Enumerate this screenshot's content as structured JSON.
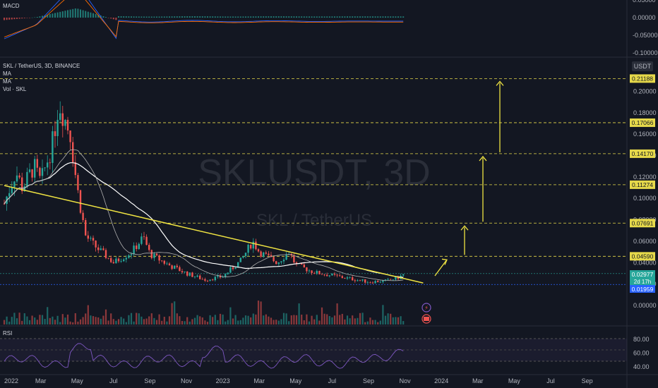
{
  "header": {
    "symbol_line": "SKL / TetherUS, 3D, BINANCE",
    "ma1": "MA",
    "ma2": "MA",
    "vol": "Vol · SKL",
    "currency": "USDT"
  },
  "watermark": {
    "ticker": "SKLUSDT, 3D",
    "pair": "SKL / TetherUS"
  },
  "macd_pane": {
    "label": "MACD",
    "ticks": [
      "0.05000",
      "0.00000",
      "-0.05000",
      "-0.10000"
    ]
  },
  "rsi_pane": {
    "label": "RSI",
    "ticks": [
      "80.00",
      "60.00",
      "40.00"
    ]
  },
  "price_axis": {
    "ticks": [
      "0.20000",
      "0.18000",
      "0.16000",
      "0.14000",
      "0.12000",
      "0.10000",
      "0.08000",
      "0.06000",
      "0.04000",
      "0.02000",
      "0.00000"
    ]
  },
  "levels": [
    "0.21188",
    "0.17066",
    "0.14170",
    "0.11274",
    "0.07691",
    "0.04590"
  ],
  "current": {
    "price": "0.02977",
    "countdown": "2d 17h",
    "low": "0.01959"
  },
  "colors": {
    "bg": "#131722",
    "up": "#26a69a",
    "down": "#ef5350",
    "level": "#e6d94a",
    "trend": "#f0e442",
    "ma_long": "#ffffff",
    "ma_short": "#c8c8c8",
    "macd": "#2962ff",
    "signal": "#ff6d00",
    "rsi": "#7e57c2",
    "last_price": "#26a69a",
    "low_tag": "#2962ff"
  },
  "chart_data": {
    "type": "candlestick",
    "x_labels": [
      "2022",
      "Mar",
      "May",
      "Jul",
      "Sep",
      "Nov",
      "2023",
      "Mar",
      "May",
      "Jul",
      "Sep",
      "Nov",
      "2024",
      "Mar",
      "May",
      "Jul",
      "Sep"
    ],
    "close_path": [
      [
        "2022-01",
        0.095
      ],
      [
        "2022-01-20",
        0.125
      ],
      [
        "2022-02",
        0.11
      ],
      [
        "2022-02-20",
        0.13
      ],
      [
        "2022-03",
        0.115
      ],
      [
        "2022-03-20",
        0.15
      ],
      [
        "2022-04",
        0.19
      ],
      [
        "2022-04-20",
        0.16
      ],
      [
        "2022-05",
        0.11
      ],
      [
        "2022-05-15",
        0.065
      ],
      [
        "2022-06",
        0.055
      ],
      [
        "2022-07",
        0.04
      ],
      [
        "2022-08",
        0.05
      ],
      [
        "2022-08-20",
        0.064
      ],
      [
        "2022-09",
        0.048
      ],
      [
        "2022-10",
        0.038
      ],
      [
        "2022-11",
        0.03
      ],
      [
        "2022-12",
        0.024
      ],
      [
        "2023-01",
        0.027
      ],
      [
        "2023-02",
        0.042
      ],
      [
        "2023-02-20",
        0.06
      ],
      [
        "2023-03",
        0.05
      ],
      [
        "2023-04",
        0.04
      ],
      [
        "2023-04-20",
        0.05
      ],
      [
        "2023-05",
        0.038
      ],
      [
        "2023-06",
        0.031
      ],
      [
        "2023-07",
        0.028
      ],
      [
        "2023-08",
        0.025
      ],
      [
        "2023-09",
        0.022
      ],
      [
        "2023-10",
        0.023
      ],
      [
        "2023-10-20",
        0.026
      ],
      [
        "2023-11",
        0.0298
      ]
    ],
    "trendline": {
      "from": [
        "2022-01",
        0.112
      ],
      "to": [
        "2023-12",
        0.021
      ]
    },
    "levels": [
      0.21188,
      0.17066,
      0.1417,
      0.11274,
      0.07691,
      0.0459
    ],
    "last_price": 0.02977,
    "period_low": 0.01959,
    "projection_arrows": [
      {
        "from": 0.029,
        "to": 0.0459
      },
      {
        "from": 0.0459,
        "to": 0.07691
      },
      {
        "from": 0.07691,
        "to": 0.1417
      },
      {
        "from": 0.1417,
        "to": 0.21188
      }
    ],
    "rsi_last": 70,
    "macd_range": [
      -0.1,
      0.05
    ]
  }
}
